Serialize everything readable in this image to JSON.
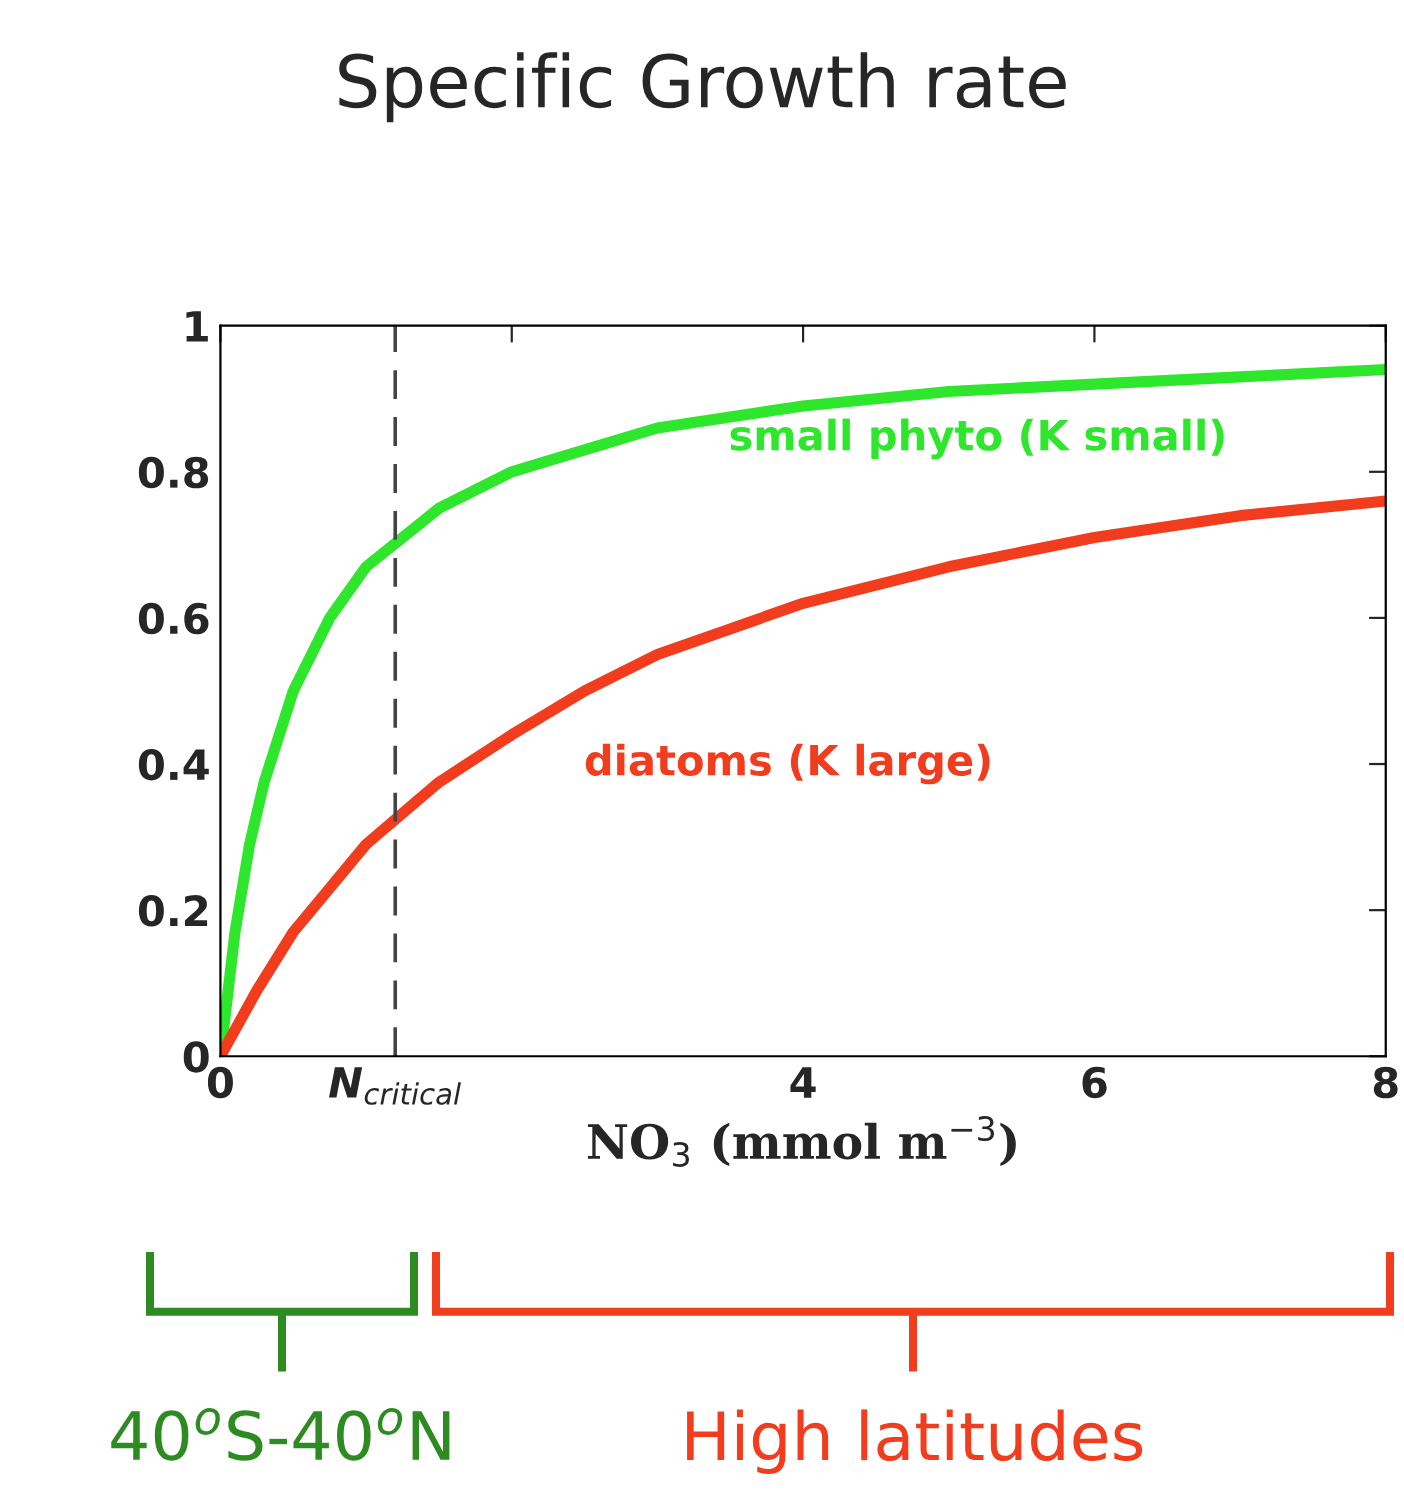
{
  "chart_data": {
    "type": "line",
    "title": "Specific Growth rate",
    "xlabel": "NO$_{3}$ (mmol m$^{−3}$)",
    "series": [
      {
        "name": "small phyto (K small)",
        "color": "#2ee62b",
        "x": [
          0,
          0.1,
          0.2,
          0.3,
          0.5,
          0.75,
          1,
          1.25,
          1.5,
          2,
          2.5,
          3,
          4,
          5,
          6,
          7,
          8
        ],
        "values": [
          0,
          0.17,
          0.29,
          0.375,
          0.5,
          0.6,
          0.67,
          0.71,
          0.75,
          0.8,
          0.83,
          0.86,
          0.89,
          0.91,
          0.92,
          0.93,
          0.94
        ]
      },
      {
        "name": "diatoms (K large)",
        "color": "#f23c1e",
        "x": [
          0,
          0.25,
          0.5,
          0.75,
          1,
          1.5,
          2,
          2.5,
          3,
          4,
          5,
          6,
          7,
          8
        ],
        "values": [
          0,
          0.09,
          0.17,
          0.23,
          0.29,
          0.375,
          0.44,
          0.5,
          0.55,
          0.62,
          0.67,
          0.71,
          0.74,
          0.76
        ]
      }
    ],
    "xlim": [
      0,
      8
    ],
    "ylim": [
      0,
      1
    ],
    "xticks": [
      0,
      {
        "value": 1.2,
        "label": "N$_{critical}$"
      },
      {
        "value": 2,
        "label": null
      },
      4,
      6,
      8
    ],
    "yticks": [
      0,
      0.2,
      0.4,
      0.6,
      0.8,
      1
    ],
    "ref_lines": [
      {
        "axis": "x",
        "value": 1.2,
        "color": "#444444",
        "line_style": "dashed"
      }
    ],
    "annotations": [
      "40$^{o}$S-40$^{o}$N",
      "High latitudes"
    ],
    "grid": false,
    "legend": false,
    "marker": "none",
    "line_style": "solid"
  }
}
